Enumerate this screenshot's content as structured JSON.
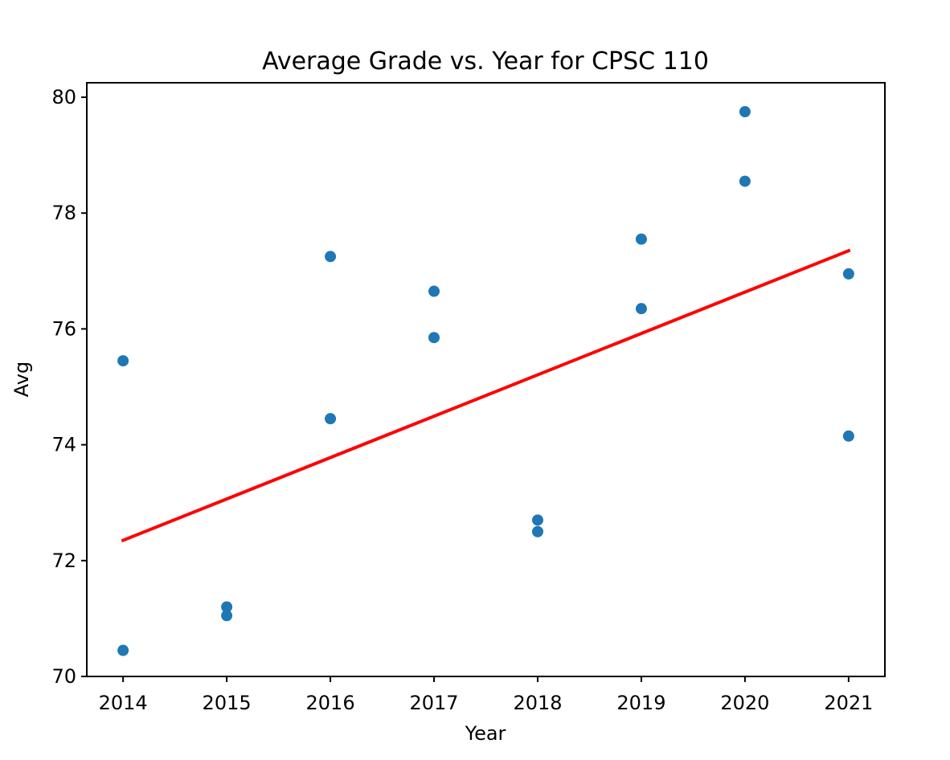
{
  "chart_data": {
    "type": "scatter",
    "title": "Average Grade vs. Year for CPSC 110",
    "xlabel": "Year",
    "ylabel": "Avg",
    "xlim": [
      2013.65,
      2021.35
    ],
    "ylim": [
      70,
      80.25
    ],
    "x_ticks": [
      "2014",
      "2015",
      "2016",
      "2017",
      "2018",
      "2019",
      "2020",
      "2021"
    ],
    "y_ticks": [
      "70",
      "72",
      "74",
      "76",
      "78",
      "80"
    ],
    "grid": false,
    "legend": "none",
    "series": [
      {
        "type": "scatter",
        "color": "#1f77b4",
        "points": [
          {
            "x": 2014,
            "y": 75.45
          },
          {
            "x": 2014,
            "y": 70.45
          },
          {
            "x": 2015,
            "y": 71.2
          },
          {
            "x": 2015,
            "y": 71.05
          },
          {
            "x": 2016,
            "y": 77.25
          },
          {
            "x": 2016,
            "y": 74.45
          },
          {
            "x": 2017,
            "y": 76.65
          },
          {
            "x": 2017,
            "y": 75.85
          },
          {
            "x": 2018,
            "y": 72.7
          },
          {
            "x": 2018,
            "y": 72.5
          },
          {
            "x": 2019,
            "y": 77.55
          },
          {
            "x": 2019,
            "y": 76.35
          },
          {
            "x": 2020,
            "y": 79.75
          },
          {
            "x": 2020,
            "y": 78.55
          },
          {
            "x": 2021,
            "y": 76.95
          },
          {
            "x": 2021,
            "y": 74.15
          }
        ]
      },
      {
        "type": "line",
        "color": "#ff0000",
        "points": [
          {
            "x": 2014,
            "y": 72.35
          },
          {
            "x": 2021,
            "y": 77.35
          }
        ]
      }
    ]
  }
}
